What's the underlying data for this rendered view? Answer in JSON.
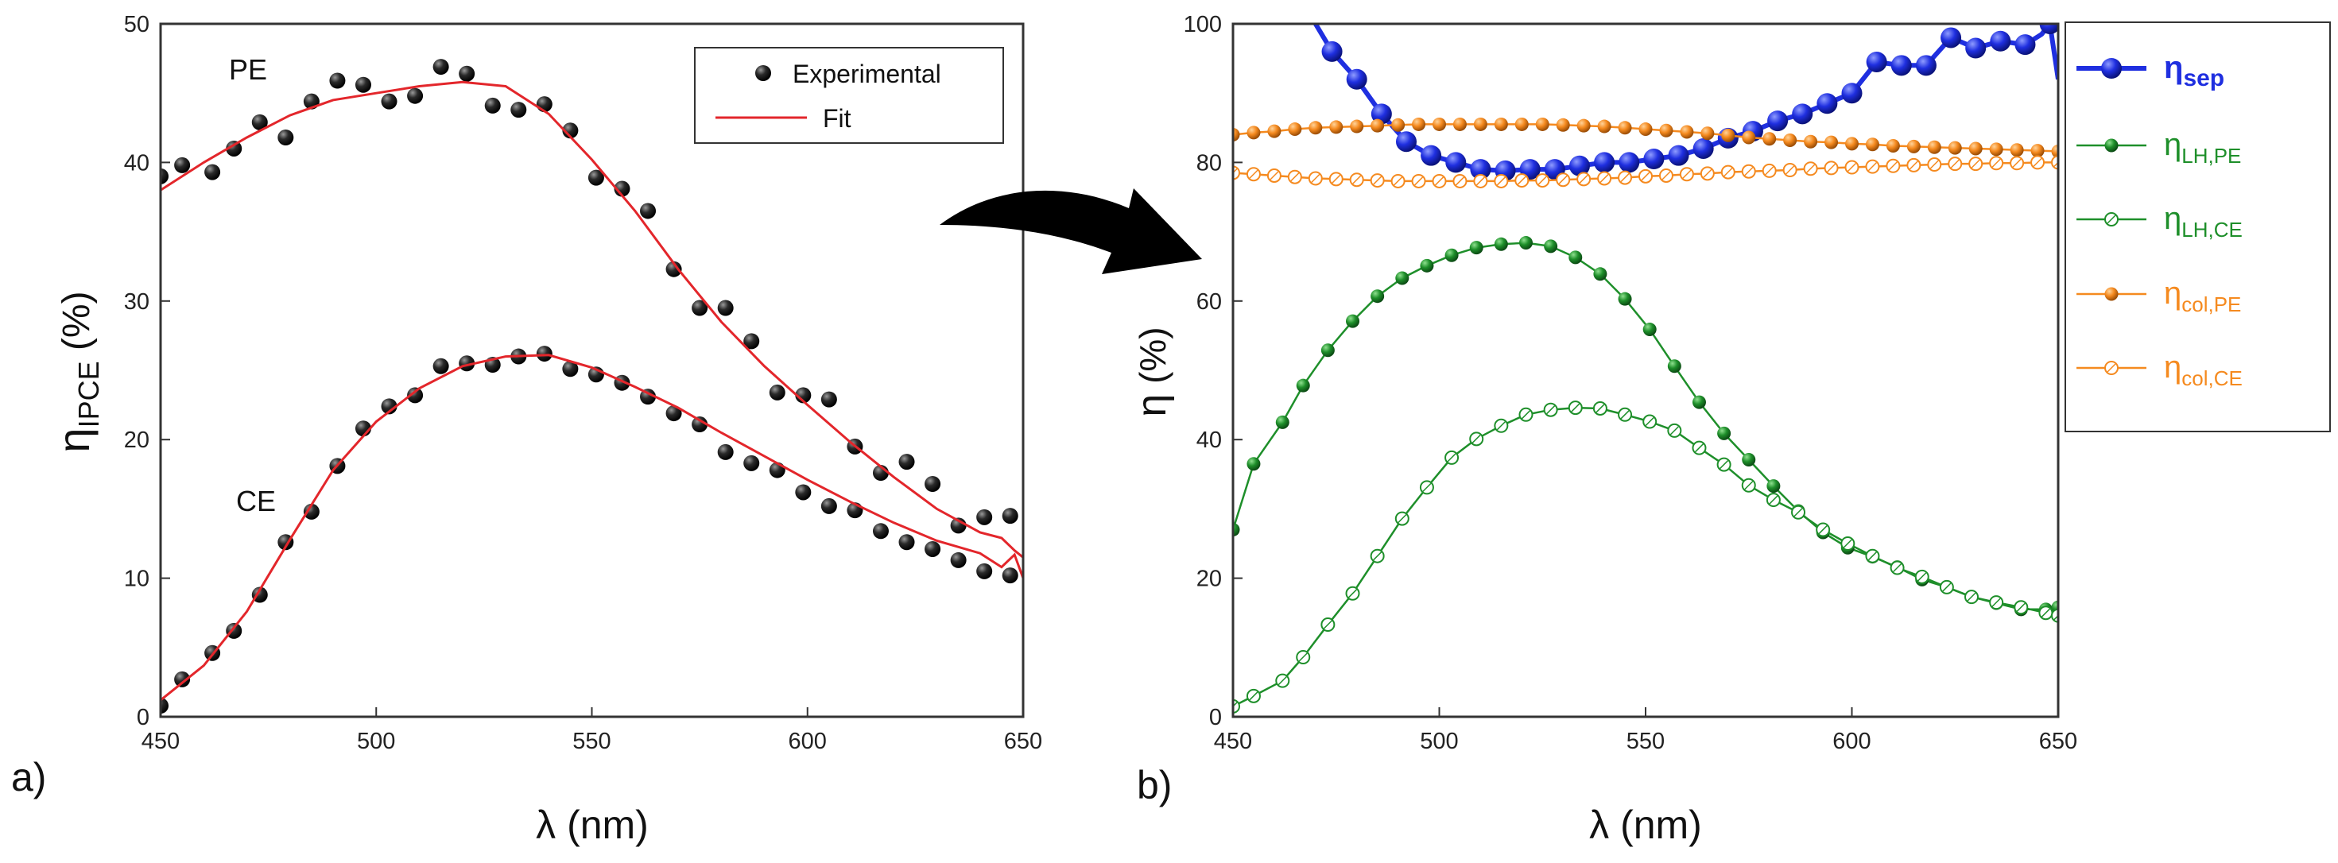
{
  "chart_data": [
    {
      "panel_label": "a)",
      "type": "scatter",
      "xlabel": "λ (nm)",
      "ylabel": {
        "main": "η",
        "sub": "IPCE",
        "rest": " (%)"
      },
      "xlim": [
        450,
        650
      ],
      "ylim": [
        0,
        50
      ],
      "xticks": [
        450,
        500,
        550,
        600,
        650
      ],
      "yticks": [
        0,
        10,
        20,
        30,
        40,
        50
      ],
      "annotations": [
        {
          "text": "PE",
          "x": 473,
          "y": 46
        },
        {
          "text": "CE",
          "x": 469,
          "y": 15.2
        }
      ],
      "legend": {
        "placement": "top-right",
        "entries": [
          "Experimental",
          "Fit"
        ]
      },
      "series": [
        {
          "name": "Experimental",
          "group": "PE",
          "style": "points",
          "x": [
            450,
            455,
            462,
            467,
            473,
            479,
            485,
            491,
            497,
            503,
            509,
            515,
            521,
            527,
            533,
            539,
            545,
            551,
            557,
            563,
            569,
            575,
            581,
            587,
            593,
            599,
            605,
            611,
            617,
            623,
            629,
            635,
            641,
            647
          ],
          "y": [
            39,
            39.8,
            39.3,
            41,
            42.9,
            41.8,
            44.4,
            45.9,
            45.6,
            44.4,
            44.8,
            46.9,
            46.4,
            44.1,
            43.8,
            44.2,
            42.3,
            38.9,
            38.1,
            36.5,
            32.3,
            29.5,
            29.5,
            27.1,
            23.4,
            23.2,
            22.9,
            19.5,
            17.6,
            18.4,
            16.8,
            13.8,
            14.4,
            14.5
          ]
        },
        {
          "name": "Fit",
          "group": "PE",
          "style": "line",
          "color": "#e3262b",
          "x": [
            450,
            460,
            470,
            480,
            490,
            500,
            510,
            520,
            530,
            540,
            550,
            560,
            570,
            580,
            590,
            600,
            610,
            620,
            630,
            640,
            645,
            648,
            650
          ],
          "y": [
            38,
            40,
            41.8,
            43.4,
            44.5,
            45,
            45.5,
            45.8,
            45.5,
            43.5,
            40.2,
            36.5,
            32.3,
            28.5,
            25.3,
            22.5,
            19.8,
            17.3,
            15,
            13.3,
            12.9,
            12,
            11.5
          ]
        },
        {
          "name": "Experimental",
          "group": "CE",
          "style": "points",
          "x": [
            450,
            455,
            462,
            467,
            473,
            479,
            485,
            491,
            497,
            503,
            509,
            515,
            521,
            527,
            533,
            539,
            545,
            551,
            557,
            563,
            569,
            575,
            581,
            587,
            593,
            599,
            605,
            611,
            617,
            623,
            629,
            635,
            641,
            647
          ],
          "y": [
            0.8,
            2.7,
            4.6,
            6.2,
            8.8,
            12.6,
            14.8,
            18.1,
            20.8,
            22.4,
            23.2,
            25.3,
            25.5,
            25.4,
            26,
            26.2,
            25.1,
            24.7,
            24.1,
            23.1,
            21.9,
            21.1,
            19.1,
            18.3,
            17.8,
            16.2,
            15.2,
            14.9,
            13.4,
            12.6,
            12.1,
            11.3,
            10.5,
            10.2
          ]
        },
        {
          "name": "Fit",
          "group": "CE",
          "style": "line",
          "color": "#e3262b",
          "x": [
            450,
            460,
            470,
            480,
            490,
            500,
            510,
            520,
            530,
            540,
            550,
            560,
            570,
            580,
            590,
            600,
            610,
            620,
            630,
            640,
            645,
            648,
            650
          ],
          "y": [
            1.2,
            3.7,
            7.6,
            12.8,
            17.8,
            21.3,
            23.7,
            25.3,
            26,
            26.1,
            25.2,
            23.8,
            22.3,
            20.5,
            18.8,
            17.1,
            15.5,
            14,
            12.7,
            11.8,
            10.8,
            11.7,
            10
          ]
        }
      ]
    },
    {
      "panel_label": "b)",
      "type": "line",
      "xlabel": "λ (nm)",
      "ylabel": {
        "main": "η",
        "sub": "",
        "rest": " (%)"
      },
      "xlim": [
        450,
        650
      ],
      "ylim": [
        0,
        100
      ],
      "xticks": [
        450,
        500,
        550,
        600,
        650
      ],
      "yticks": [
        0,
        20,
        40,
        60,
        80,
        100
      ],
      "legend": {
        "placement": "outside-right"
      },
      "series": [
        {
          "name": "η",
          "sub": "sep",
          "color": "#1f2fe0",
          "marker": "big-filled",
          "x": [
            470,
            474,
            480,
            486,
            492,
            498,
            504,
            510,
            516,
            522,
            528,
            534,
            540,
            546,
            552,
            558,
            564,
            570,
            576,
            582,
            588,
            594,
            600,
            606,
            612,
            618,
            624,
            630,
            636,
            642,
            646,
            648,
            650
          ],
          "y": [
            100,
            96,
            92,
            87,
            83,
            81,
            80,
            79,
            78.8,
            79,
            79,
            79.5,
            80,
            80,
            80.5,
            81,
            82,
            83.5,
            84.5,
            86,
            87,
            88.5,
            90,
            94.5,
            94,
            94,
            98,
            96.5,
            97.5,
            97,
            98.5,
            100,
            92
          ],
          "marker_x": [
            474,
            480,
            486,
            492,
            498,
            504,
            510,
            516,
            522,
            528,
            534,
            540,
            546,
            552,
            558,
            564,
            570,
            576,
            582,
            588,
            594,
            600,
            606,
            612,
            618,
            624,
            630,
            636,
            642,
            648
          ]
        },
        {
          "name": "η",
          "sub": "LH,PE",
          "color": "#1e8f2a",
          "marker": "filled",
          "x": [
            450,
            455,
            462,
            467,
            473,
            479,
            485,
            491,
            497,
            503,
            509,
            515,
            521,
            527,
            533,
            539,
            545,
            551,
            557,
            563,
            569,
            575,
            581,
            587,
            593,
            599,
            605,
            611,
            617,
            623,
            629,
            635,
            641,
            647,
            650
          ],
          "y": [
            27,
            36.5,
            42.5,
            47.8,
            52.9,
            57.1,
            60.7,
            63.3,
            65.1,
            66.6,
            67.7,
            68.2,
            68.4,
            67.9,
            66.3,
            63.9,
            60.3,
            55.9,
            50.6,
            45.4,
            40.9,
            37.1,
            33.3,
            29.7,
            26.6,
            24.4,
            23.1,
            21.6,
            19.8,
            18.7,
            17.3,
            16.4,
            15.5,
            15.5,
            15.8
          ]
        },
        {
          "name": "η",
          "sub": "LH,CE",
          "color": "#1e8f2a",
          "marker": "open",
          "x": [
            450,
            455,
            462,
            467,
            473,
            479,
            485,
            491,
            497,
            503,
            509,
            515,
            521,
            527,
            533,
            539,
            545,
            551,
            557,
            563,
            569,
            575,
            581,
            587,
            593,
            599,
            605,
            611,
            617,
            623,
            629,
            635,
            641,
            647,
            650
          ],
          "y": [
            1.5,
            3,
            5.2,
            8.6,
            13.3,
            17.8,
            23.2,
            28.6,
            33.1,
            37.4,
            40.1,
            42,
            43.6,
            44.3,
            44.6,
            44.5,
            43.6,
            42.6,
            41.3,
            38.8,
            36.4,
            33.4,
            31.3,
            29.5,
            27,
            25,
            23.2,
            21.5,
            20.2,
            18.7,
            17.3,
            16.5,
            15.8,
            15,
            14.6
          ]
        },
        {
          "name": "η",
          "sub": "col,PE",
          "color": "#f58a1f",
          "marker": "filled",
          "x": [
            450,
            455,
            460,
            465,
            470,
            475,
            480,
            485,
            490,
            495,
            500,
            505,
            510,
            515,
            520,
            525,
            530,
            535,
            540,
            545,
            550,
            555,
            560,
            565,
            570,
            575,
            580,
            585,
            590,
            595,
            600,
            605,
            610,
            615,
            620,
            625,
            630,
            635,
            640,
            645,
            650
          ],
          "y": [
            84,
            84.3,
            84.5,
            84.8,
            85,
            85.1,
            85.2,
            85.3,
            85.4,
            85.5,
            85.5,
            85.5,
            85.5,
            85.5,
            85.5,
            85.5,
            85.4,
            85.3,
            85.2,
            85,
            84.8,
            84.6,
            84.4,
            84.2,
            83.9,
            83.6,
            83.4,
            83.2,
            83,
            82.9,
            82.7,
            82.6,
            82.4,
            82.3,
            82.2,
            82.1,
            82,
            81.9,
            81.8,
            81.7,
            81.6
          ]
        },
        {
          "name": "η",
          "sub": "col,CE",
          "color": "#f58a1f",
          "marker": "open",
          "x": [
            450,
            455,
            460,
            465,
            470,
            475,
            480,
            485,
            490,
            495,
            500,
            505,
            510,
            515,
            520,
            525,
            530,
            535,
            540,
            545,
            550,
            555,
            560,
            565,
            570,
            575,
            580,
            585,
            590,
            595,
            600,
            605,
            610,
            615,
            620,
            625,
            630,
            635,
            640,
            645,
            650
          ],
          "y": [
            78.5,
            78.3,
            78.1,
            77.9,
            77.7,
            77.6,
            77.5,
            77.4,
            77.3,
            77.3,
            77.3,
            77.3,
            77.3,
            77.3,
            77.4,
            77.4,
            77.5,
            77.6,
            77.7,
            77.8,
            78,
            78.1,
            78.3,
            78.4,
            78.6,
            78.7,
            78.8,
            78.9,
            79.1,
            79.2,
            79.3,
            79.4,
            79.5,
            79.6,
            79.7,
            79.8,
            79.8,
            79.9,
            79.9,
            80,
            80
          ]
        }
      ]
    }
  ]
}
